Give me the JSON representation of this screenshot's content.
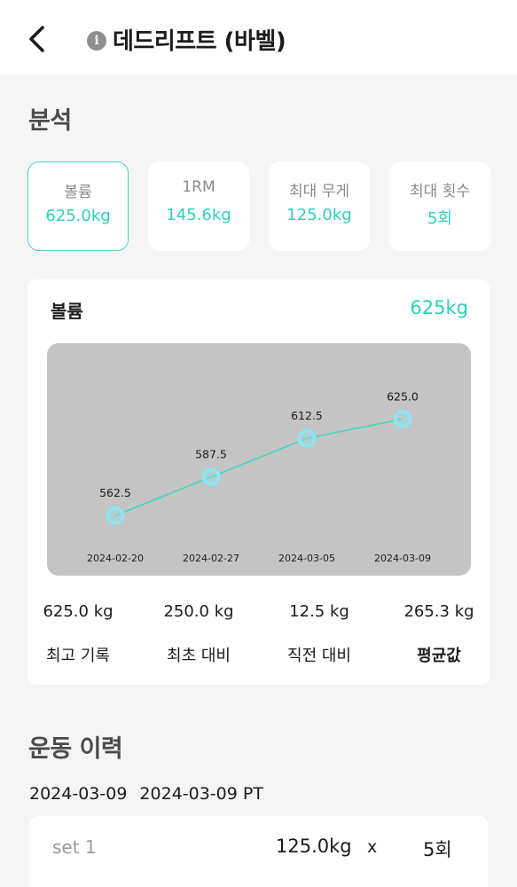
{
  "header": {
    "title": "데드리프트 (바벨)",
    "info_icon": "info-icon",
    "back_icon": "chevron-left-icon"
  },
  "analysis": {
    "title": "분석",
    "cards": [
      {
        "label": "볼륨",
        "value": "625.0kg",
        "active": true
      },
      {
        "label": "1RM",
        "value": "145.6kg",
        "active": false
      },
      {
        "label": "최대 무게",
        "value": "125.0kg",
        "active": false
      },
      {
        "label": "최대 횟수",
        "value": "5회",
        "active": false
      }
    ]
  },
  "panel": {
    "label": "볼륨",
    "value": "625kg",
    "summary": [
      {
        "value": "625.0 kg",
        "label": "최고 기록"
      },
      {
        "value": "250.0 kg",
        "label": "최초 대비"
      },
      {
        "value": "12.5 kg",
        "label": "직전 대비"
      },
      {
        "value": "265.3 kg",
        "label": "평균값"
      }
    ]
  },
  "chart_data": {
    "type": "line",
    "x": [
      "2024-02-20",
      "2024-02-27",
      "2024-03-05",
      "2024-03-09"
    ],
    "series": [
      {
        "values": [
          562.5,
          587.5,
          612.5,
          625.0
        ],
        "labels": [
          "562.5",
          "587.5",
          "612.5",
          "625.0"
        ]
      }
    ],
    "ylim": [
      550,
      635
    ],
    "grid": false,
    "line_color": "#3fd8c2",
    "marker_color": "#8fe3f2",
    "background": "#c4c4c4"
  },
  "history": {
    "title": "운동 이력",
    "date": "2024-03-09",
    "session": "2024-03-09 PT",
    "sets": [
      {
        "name": "set 1",
        "weight": "125.0kg",
        "x": "x",
        "reps": "5회"
      }
    ]
  },
  "colors": {
    "accent": "#2fcfbb",
    "background": "#f5f5f5",
    "card": "#ffffff"
  }
}
